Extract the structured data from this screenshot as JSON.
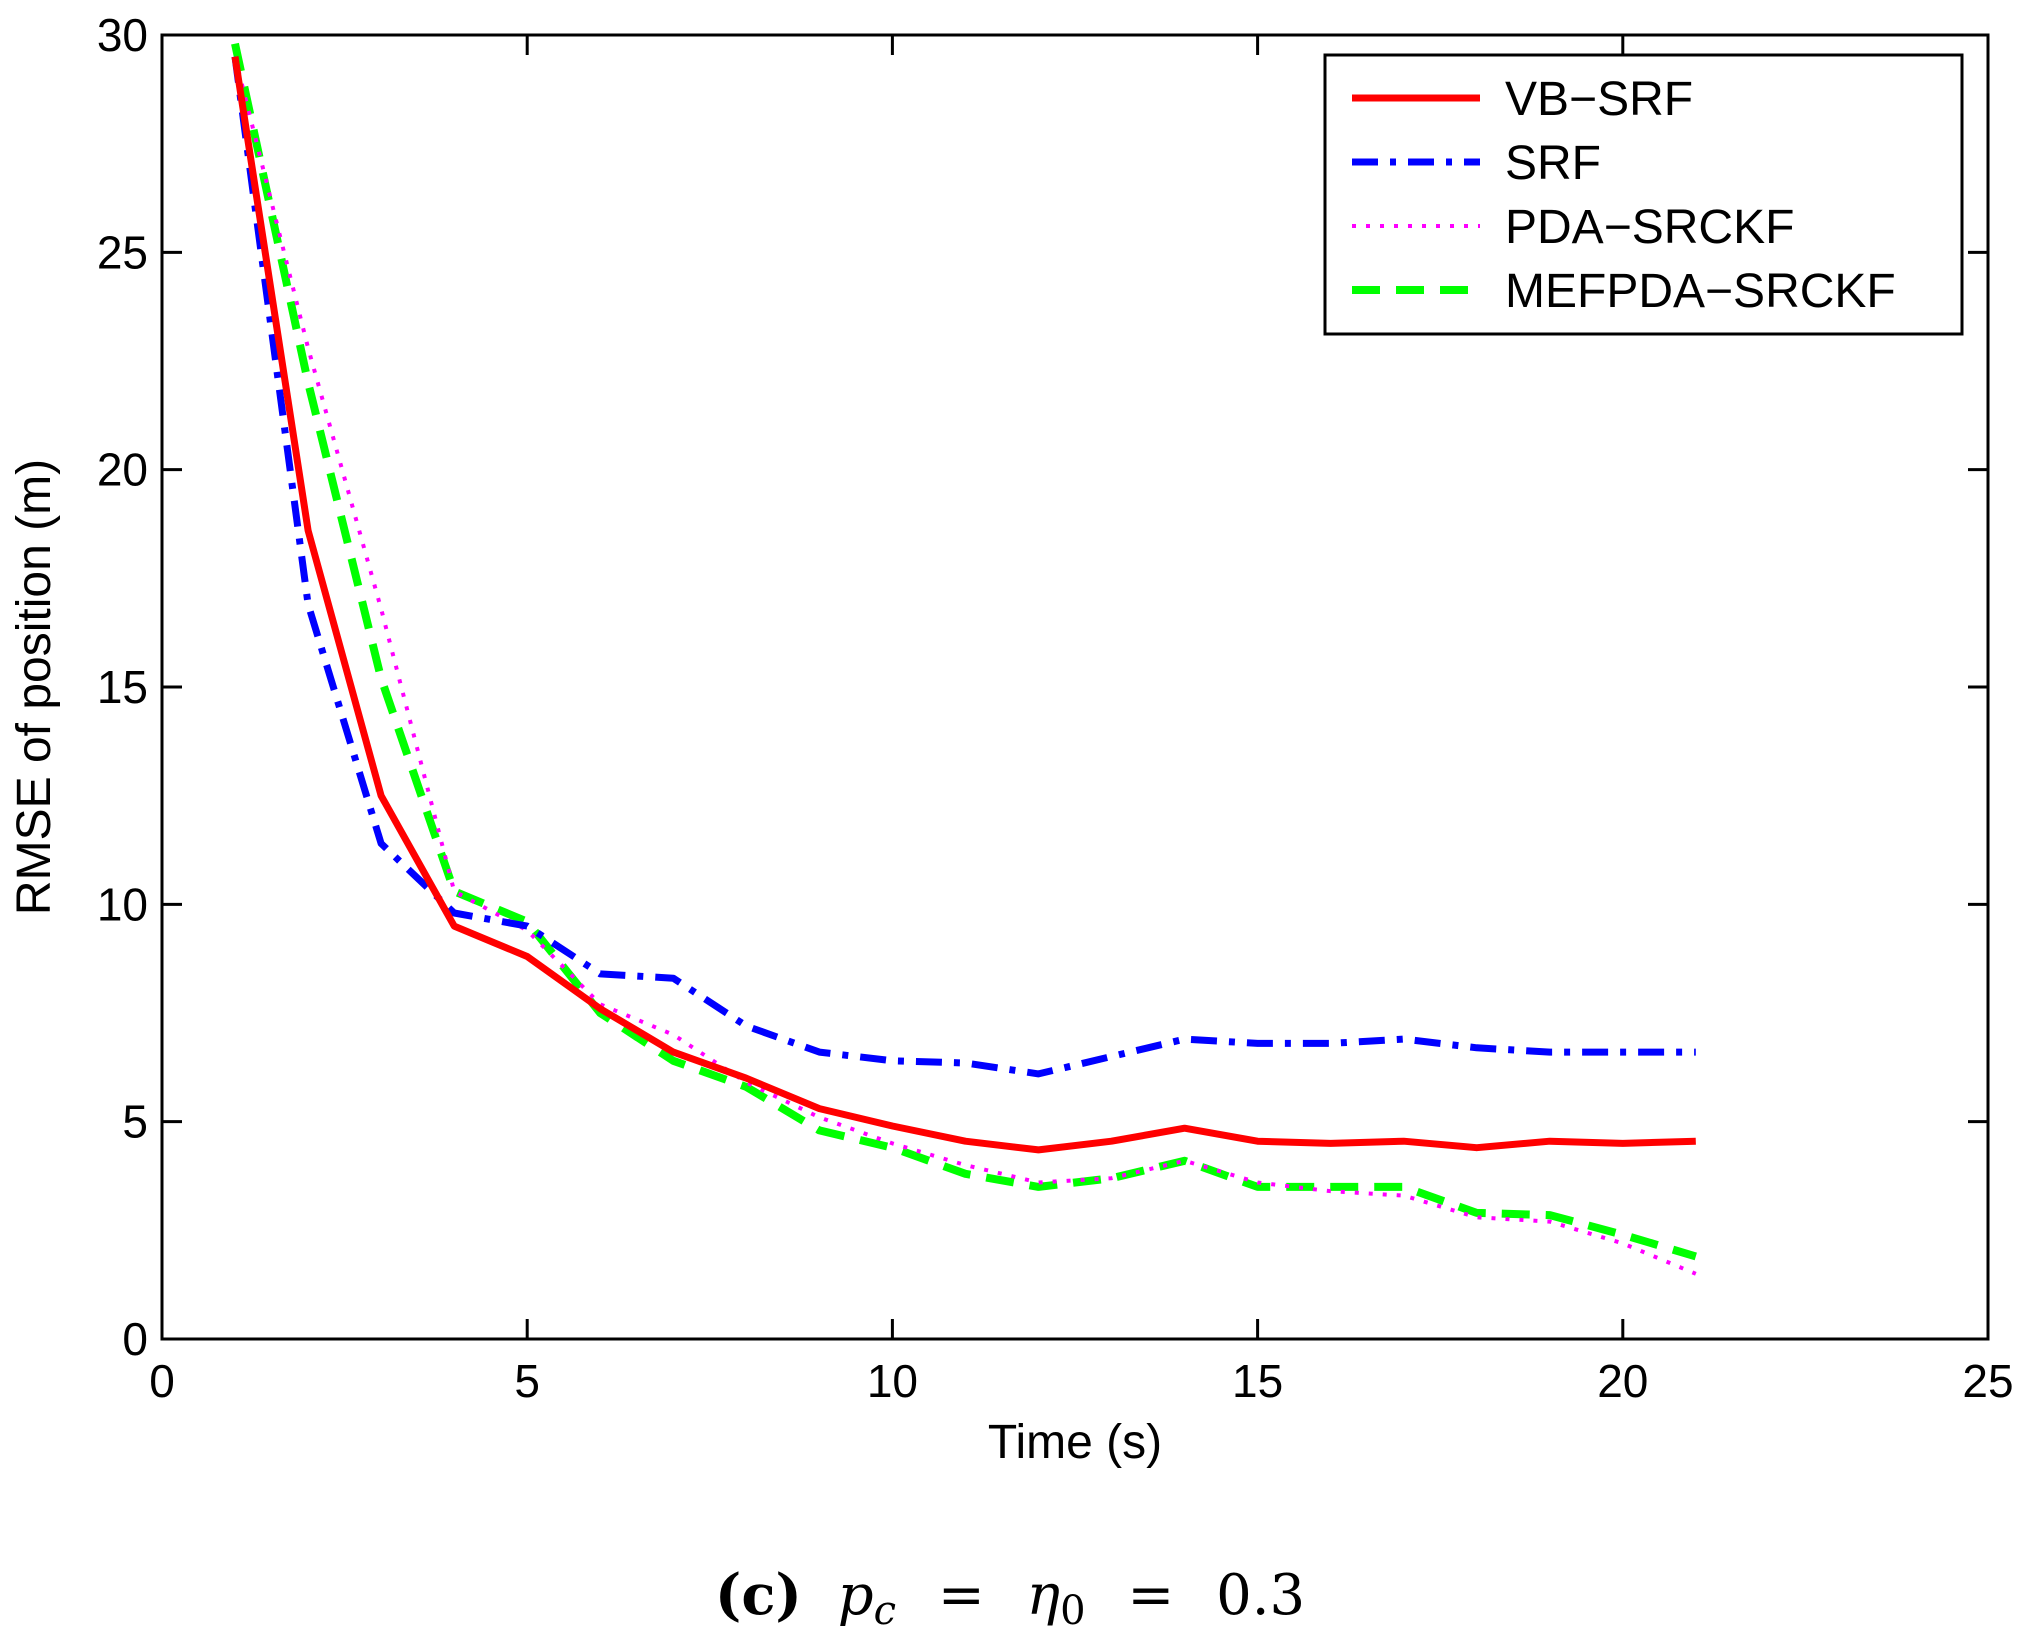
{
  "chart_data": {
    "type": "line",
    "title": "",
    "xlabel": "Time (s)",
    "ylabel": "RMSE of position (m)",
    "xlim": [
      0,
      25
    ],
    "ylim": [
      0,
      30
    ],
    "xticks": [
      0,
      5,
      10,
      15,
      20,
      25
    ],
    "yticks": [
      0,
      5,
      10,
      15,
      20,
      25,
      30
    ],
    "grid": false,
    "legend_position": "top-right",
    "x": [
      1,
      2,
      3,
      4,
      5,
      6,
      7,
      8,
      9,
      10,
      11,
      12,
      13,
      14,
      15,
      16,
      17,
      18,
      19,
      20,
      21
    ],
    "series": [
      {
        "name": "VB−SRF",
        "color": "#ff0000",
        "style": "solid",
        "values": [
          29.5,
          18.6,
          12.5,
          9.5,
          8.8,
          7.6,
          6.6,
          6.0,
          5.3,
          4.9,
          4.55,
          4.35,
          4.55,
          4.85,
          4.55,
          4.5,
          4.55,
          4.4,
          4.55,
          4.5,
          4.55
        ]
      },
      {
        "name": "SRF",
        "color": "#0000ff",
        "style": "dashdot",
        "values": [
          29.5,
          16.9,
          11.4,
          9.8,
          9.5,
          8.4,
          8.3,
          7.2,
          6.6,
          6.4,
          6.35,
          6.1,
          6.5,
          6.9,
          6.8,
          6.8,
          6.9,
          6.7,
          6.6,
          6.6,
          6.6
        ]
      },
      {
        "name": "PDA−SRCKF",
        "color": "#ff00ff",
        "style": "dotted",
        "values": [
          29.5,
          22.8,
          16.8,
          10.3,
          9.4,
          7.7,
          7.0,
          5.9,
          5.1,
          4.5,
          4.0,
          3.6,
          3.7,
          4.1,
          3.6,
          3.4,
          3.3,
          2.8,
          2.7,
          2.2,
          1.5
        ]
      },
      {
        "name": "MEFPDA−SRCKF",
        "color": "#00ff00",
        "style": "dashed",
        "values": [
          29.8,
          22.0,
          15.2,
          10.3,
          9.6,
          7.5,
          6.4,
          5.8,
          4.8,
          4.4,
          3.8,
          3.5,
          3.7,
          4.1,
          3.5,
          3.5,
          3.5,
          2.9,
          2.85,
          2.4,
          1.9
        ]
      }
    ]
  },
  "caption": {
    "label": "(c)",
    "math": "p_c = η_0 = 0.3",
    "p": "p",
    "c": "c",
    "eq": "=",
    "eta": "η",
    "zero": "0",
    "value": "0.3"
  }
}
